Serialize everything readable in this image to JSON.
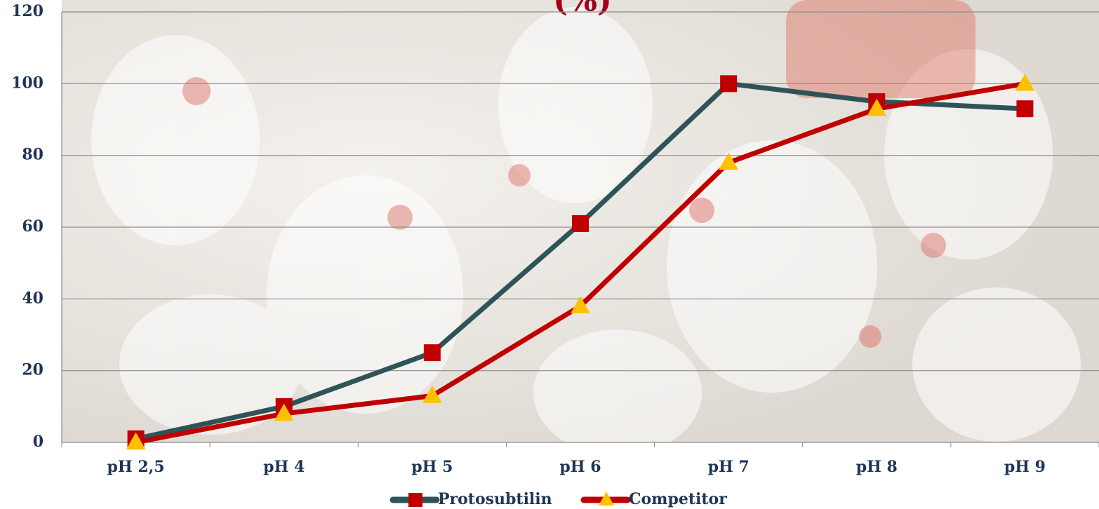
{
  "chart_data": {
    "type": "line",
    "title": "(%)",
    "categories": [
      "pH 2,5",
      "pH 4",
      "pH 5",
      "pH 6",
      "pH 7",
      "pH 8",
      "pH 9"
    ],
    "series": [
      {
        "name": "Protosubtilin",
        "color": "#2e5457",
        "marker": "square",
        "marker_color": "#c00000",
        "values": [
          1,
          10,
          25,
          61,
          100,
          95,
          93
        ]
      },
      {
        "name": "Competitor",
        "color": "#c00000",
        "marker": "triangle",
        "marker_color": "#ffc000",
        "values": [
          0,
          8,
          13,
          38,
          78,
          93,
          100
        ]
      }
    ],
    "ylim": [
      0,
      120
    ],
    "yticks": [
      0,
      20,
      40,
      60,
      80,
      100,
      120
    ],
    "grid": true,
    "legend": "bottom"
  }
}
